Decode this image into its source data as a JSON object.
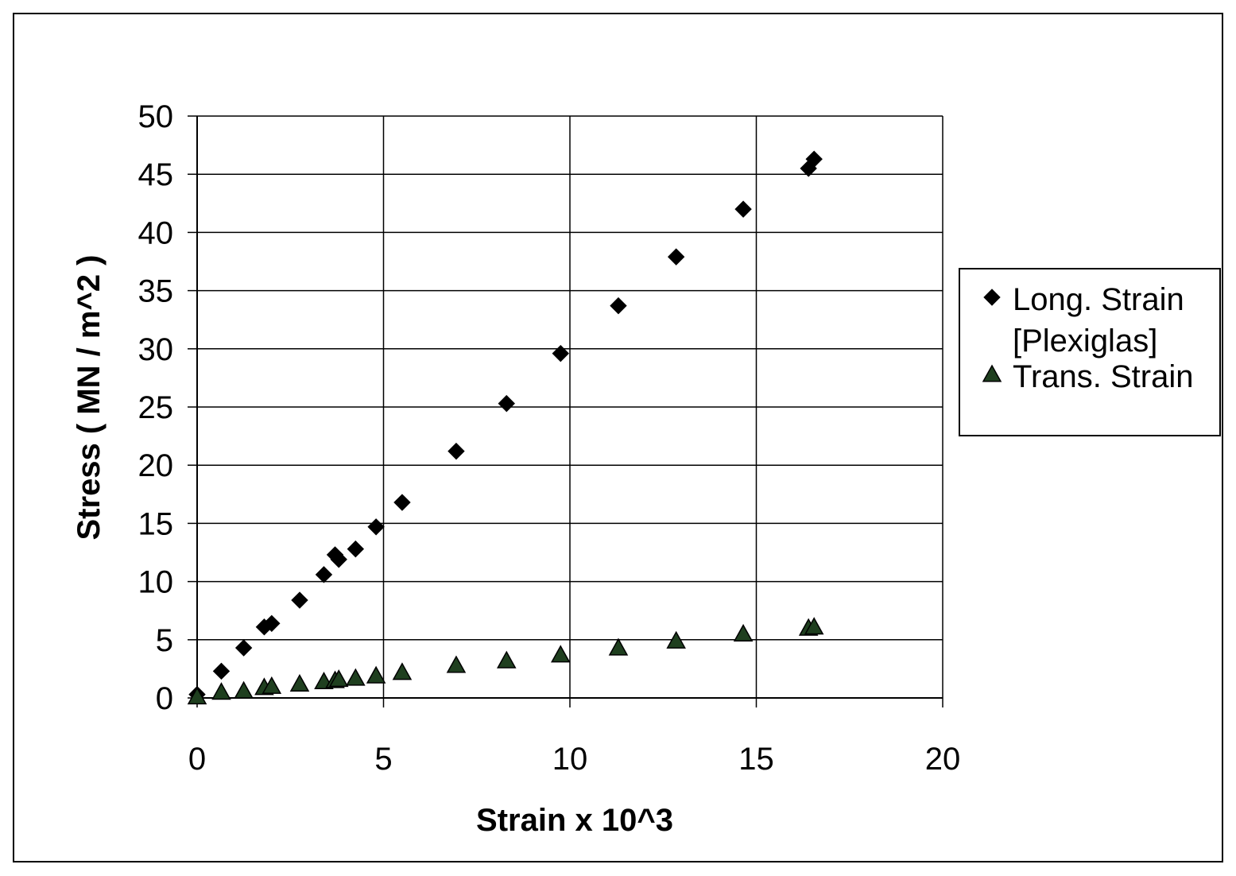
{
  "chart_data": {
    "type": "scatter",
    "title": "",
    "xlabel": "Strain x 10^3",
    "ylabel": "Stress ( MN / m^2 )",
    "xlim": [
      0,
      20
    ],
    "ylim": [
      0,
      50
    ],
    "xticks": [
      "0",
      "5",
      "10",
      "15",
      "20"
    ],
    "yticks": [
      "0",
      "5",
      "10",
      "15",
      "20",
      "25",
      "30",
      "35",
      "40",
      "45",
      "50"
    ],
    "grid": true,
    "legend_position": "right",
    "series": [
      {
        "name": "Long. Strain [Plexiglas]",
        "legend_lines": [
          "Long. Strain",
          "[Plexiglas]"
        ],
        "marker": "diamond",
        "color": "#000000",
        "x": [
          0,
          0.65,
          1.25,
          1.8,
          2.0,
          2.75,
          3.4,
          3.7,
          3.8,
          4.25,
          4.8,
          5.5,
          6.95,
          8.3,
          9.75,
          11.3,
          12.85,
          14.65,
          16.4,
          16.55
        ],
        "y": [
          0.3,
          2.3,
          4.3,
          6.1,
          6.4,
          8.4,
          10.6,
          12.3,
          11.9,
          12.8,
          14.7,
          16.8,
          21.2,
          25.3,
          29.6,
          33.7,
          37.9,
          42.0,
          45.5,
          46.3
        ]
      },
      {
        "name": "Trans. Strain",
        "legend_lines": [
          "Trans. Strain"
        ],
        "marker": "triangle",
        "color": "#1f3f1f",
        "x": [
          0,
          0.65,
          1.25,
          1.8,
          2.0,
          2.75,
          3.4,
          3.7,
          3.8,
          4.25,
          4.8,
          5.5,
          6.95,
          8.3,
          9.75,
          11.3,
          12.85,
          14.65,
          16.4,
          16.55
        ],
        "y": [
          0.1,
          0.5,
          0.6,
          0.9,
          1.0,
          1.2,
          1.4,
          1.5,
          1.6,
          1.7,
          1.9,
          2.2,
          2.8,
          3.2,
          3.7,
          4.3,
          4.9,
          5.5,
          6.0,
          6.1
        ]
      }
    ]
  }
}
